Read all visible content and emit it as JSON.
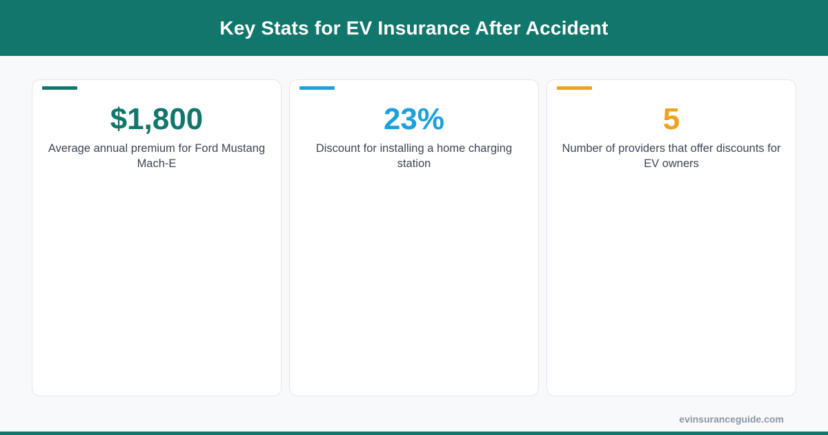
{
  "header": {
    "title": "Key Stats for EV Insurance After Accident"
  },
  "stats": [
    {
      "value": "$1,800",
      "description": "Average annual premium for Ford Mustang Mach-E",
      "color": "#11766c"
    },
    {
      "value": "23%",
      "description": "Discount for installing a home charging station",
      "color": "#1aa0dd"
    },
    {
      "value": "5",
      "description": "Number of providers that offer discounts for EV owners",
      "color": "#f0a11a"
    }
  ],
  "footer": {
    "url": "evinsuranceguide.com"
  },
  "colors": {
    "brand": "#11766c",
    "background": "#f8f9fb",
    "text": "#3d4655",
    "footer_text": "#8b96a5"
  }
}
